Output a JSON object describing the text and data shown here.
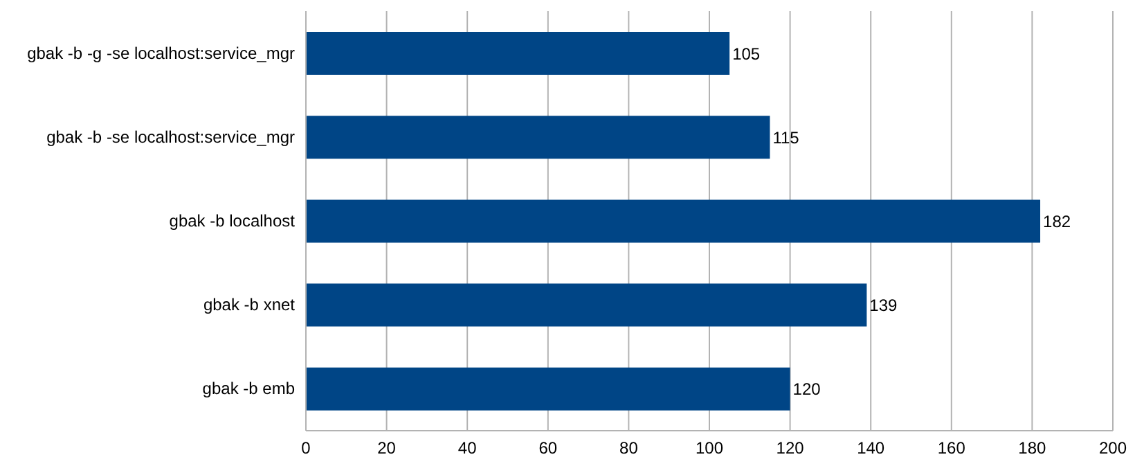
{
  "chart_data": {
    "type": "bar",
    "orientation": "horizontal",
    "categories": [
      "gbak -b -g -se localhost:service_mgr",
      "gbak -b -se localhost:service_mgr",
      "gbak -b localhost",
      "gbak -b xnet",
      "gbak -b emb"
    ],
    "values": [
      105,
      115,
      182,
      139,
      120
    ],
    "color": "#004586",
    "xlim": [
      0,
      200
    ],
    "xticks": [
      0,
      20,
      40,
      60,
      80,
      100,
      120,
      140,
      160,
      180,
      200
    ],
    "grid": "x",
    "data_labels": true
  }
}
